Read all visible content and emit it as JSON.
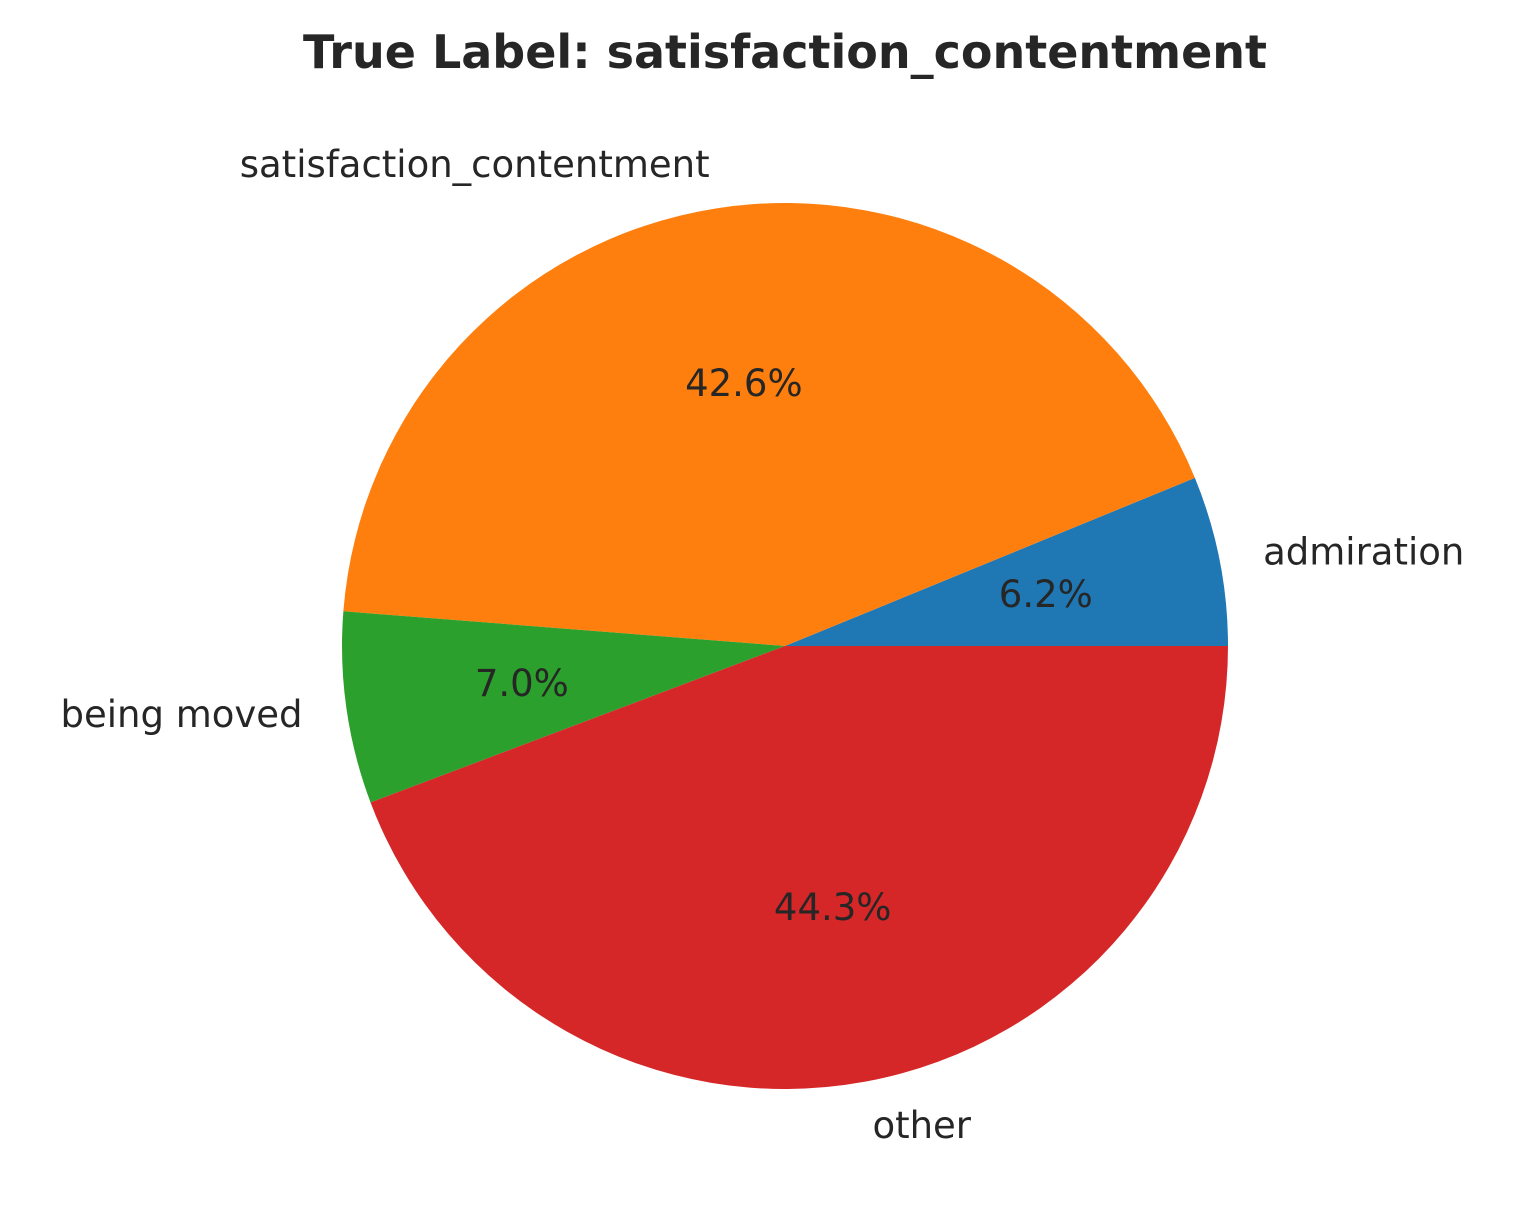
{
  "chart_data": {
    "type": "pie",
    "title": "True Label: satisfaction_contentment",
    "start_angle_deg": 0,
    "direction": "counterclockwise",
    "slices": [
      {
        "label": "admiration",
        "value": 6.2,
        "pct_label": "6.2%",
        "color": "#1f77b4"
      },
      {
        "label": "satisfaction_contentment",
        "value": 42.6,
        "pct_label": "42.6%",
        "color": "#ff7f0e"
      },
      {
        "label": "being moved",
        "value": 7.0,
        "pct_label": "7.0%",
        "color": "#2ca02c"
      },
      {
        "label": "other",
        "value": 44.3,
        "pct_label": "44.3%",
        "color": "#d62728"
      }
    ]
  }
}
